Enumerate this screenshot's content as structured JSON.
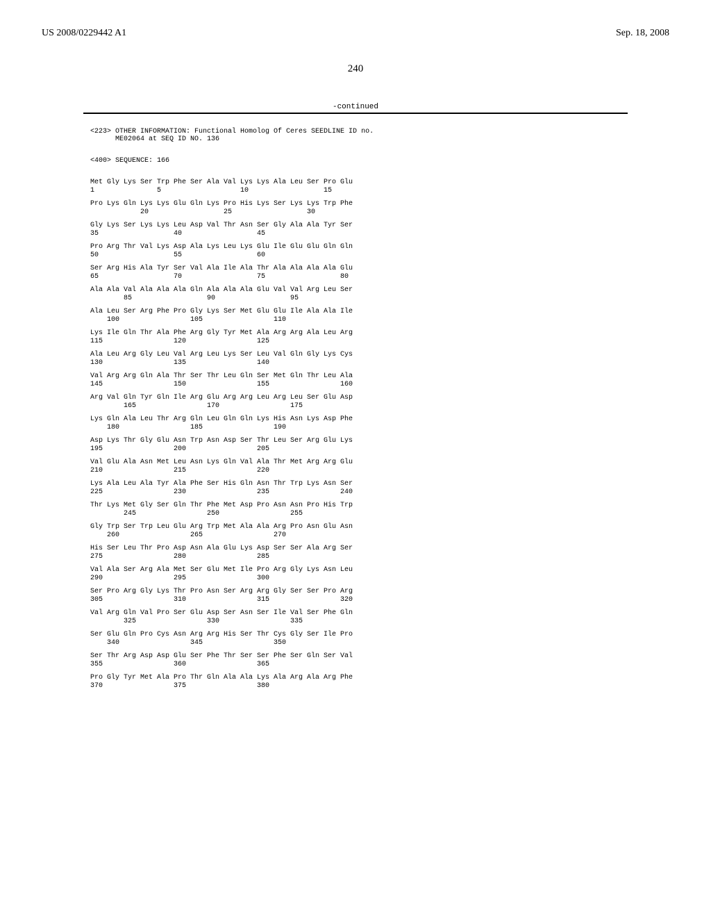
{
  "header": {
    "publication_number": "US 2008/0229442 A1",
    "date": "Sep. 18, 2008"
  },
  "page_number": "240",
  "continued_label": "-continued",
  "seq_info": {
    "line1": "<223> OTHER INFORMATION: Functional Homolog Of Ceres SEEDLINE ID no.",
    "line2": "      ME02064 at SEQ ID NO. 136",
    "line3": "<400> SEQUENCE: 166"
  },
  "sequence_rows": [
    {
      "aa": "Met Gly Lys Ser Trp Phe Ser Ala Val Lys Lys Ala Leu Ser Pro Glu",
      "pos": "1               5                   10                  15"
    },
    {
      "aa": "Pro Lys Gln Lys Lys Glu Gln Lys Pro His Lys Ser Lys Lys Trp Phe",
      "pos": "            20                  25                  30"
    },
    {
      "aa": "Gly Lys Ser Lys Lys Leu Asp Val Thr Asn Ser Gly Ala Ala Tyr Ser",
      "pos": "35                  40                  45"
    },
    {
      "aa": "Pro Arg Thr Val Lys Asp Ala Lys Leu Lys Glu Ile Glu Glu Gln Gln",
      "pos": "50                  55                  60"
    },
    {
      "aa": "Ser Arg His Ala Tyr Ser Val Ala Ile Ala Thr Ala Ala Ala Ala Glu",
      "pos": "65                  70                  75                  80"
    },
    {
      "aa": "Ala Ala Val Ala Ala Ala Gln Ala Ala Ala Glu Val Val Arg Leu Ser",
      "pos": "        85                  90                  95"
    },
    {
      "aa": "Ala Leu Ser Arg Phe Pro Gly Lys Ser Met Glu Glu Ile Ala Ala Ile",
      "pos": "    100                 105                 110"
    },
    {
      "aa": "Lys Ile Gln Thr Ala Phe Arg Gly Tyr Met Ala Arg Arg Ala Leu Arg",
      "pos": "115                 120                 125"
    },
    {
      "aa": "Ala Leu Arg Gly Leu Val Arg Leu Lys Ser Leu Val Gln Gly Lys Cys",
      "pos": "130                 135                 140"
    },
    {
      "aa": "Val Arg Arg Gln Ala Thr Ser Thr Leu Gln Ser Met Gln Thr Leu Ala",
      "pos": "145                 150                 155                 160"
    },
    {
      "aa": "Arg Val Gln Tyr Gln Ile Arg Glu Arg Arg Leu Arg Leu Ser Glu Asp",
      "pos": "        165                 170                 175"
    },
    {
      "aa": "Lys Gln Ala Leu Thr Arg Gln Leu Gln Gln Lys His Asn Lys Asp Phe",
      "pos": "    180                 185                 190"
    },
    {
      "aa": "Asp Lys Thr Gly Glu Asn Trp Asn Asp Ser Thr Leu Ser Arg Glu Lys",
      "pos": "195                 200                 205"
    },
    {
      "aa": "Val Glu Ala Asn Met Leu Asn Lys Gln Val Ala Thr Met Arg Arg Glu",
      "pos": "210                 215                 220"
    },
    {
      "aa": "Lys Ala Leu Ala Tyr Ala Phe Ser His Gln Asn Thr Trp Lys Asn Ser",
      "pos": "225                 230                 235                 240"
    },
    {
      "aa": "Thr Lys Met Gly Ser Gln Thr Phe Met Asp Pro Asn Asn Pro His Trp",
      "pos": "        245                 250                 255"
    },
    {
      "aa": "Gly Trp Ser Trp Leu Glu Arg Trp Met Ala Ala Arg Pro Asn Glu Asn",
      "pos": "    260                 265                 270"
    },
    {
      "aa": "His Ser Leu Thr Pro Asp Asn Ala Glu Lys Asp Ser Ser Ala Arg Ser",
      "pos": "275                 280                 285"
    },
    {
      "aa": "Val Ala Ser Arg Ala Met Ser Glu Met Ile Pro Arg Gly Lys Asn Leu",
      "pos": "290                 295                 300"
    },
    {
      "aa": "Ser Pro Arg Gly Lys Thr Pro Asn Ser Arg Arg Gly Ser Ser Pro Arg",
      "pos": "305                 310                 315                 320"
    },
    {
      "aa": "Val Arg Gln Val Pro Ser Glu Asp Ser Asn Ser Ile Val Ser Phe Gln",
      "pos": "        325                 330                 335"
    },
    {
      "aa": "Ser Glu Gln Pro Cys Asn Arg Arg His Ser Thr Cys Gly Ser Ile Pro",
      "pos": "    340                 345                 350"
    },
    {
      "aa": "Ser Thr Arg Asp Asp Glu Ser Phe Thr Ser Ser Phe Ser Gln Ser Val",
      "pos": "355                 360                 365"
    },
    {
      "aa": "Pro Gly Tyr Met Ala Pro Thr Gln Ala Ala Lys Ala Arg Ala Arg Phe",
      "pos": "370                 375                 380"
    }
  ]
}
